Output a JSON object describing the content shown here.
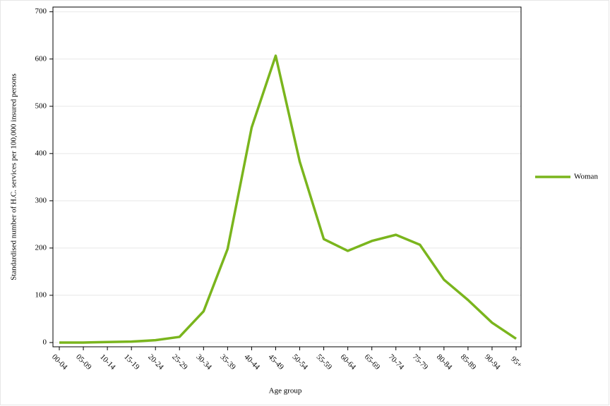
{
  "chart_data": {
    "type": "line",
    "y_label": "Standardised number of H.C. services per 100,000 insured persons",
    "x_label": "Age group",
    "categories": [
      "00-04",
      "05-09",
      "10-14",
      "15-19",
      "20-24",
      "25-29",
      "30-34",
      "35-39",
      "40-44",
      "45-49",
      "50-54",
      "55-59",
      "60-64",
      "65-69",
      "70-74",
      "75-79",
      "80-84",
      "85-89",
      "90-94",
      "95+"
    ],
    "series": [
      {
        "name": "Woman",
        "color": "#7ab51d",
        "values": [
          0,
          0,
          1,
          2,
          5,
          12,
          66,
          198,
          455,
          607,
          383,
          219,
          194,
          215,
          228,
          207,
          133,
          90,
          42,
          8
        ]
      }
    ],
    "ylim": [
      -9,
      710
    ],
    "yticks": [
      0,
      100,
      200,
      300,
      400,
      500,
      600,
      700
    ],
    "grid": true,
    "legend": "right"
  }
}
